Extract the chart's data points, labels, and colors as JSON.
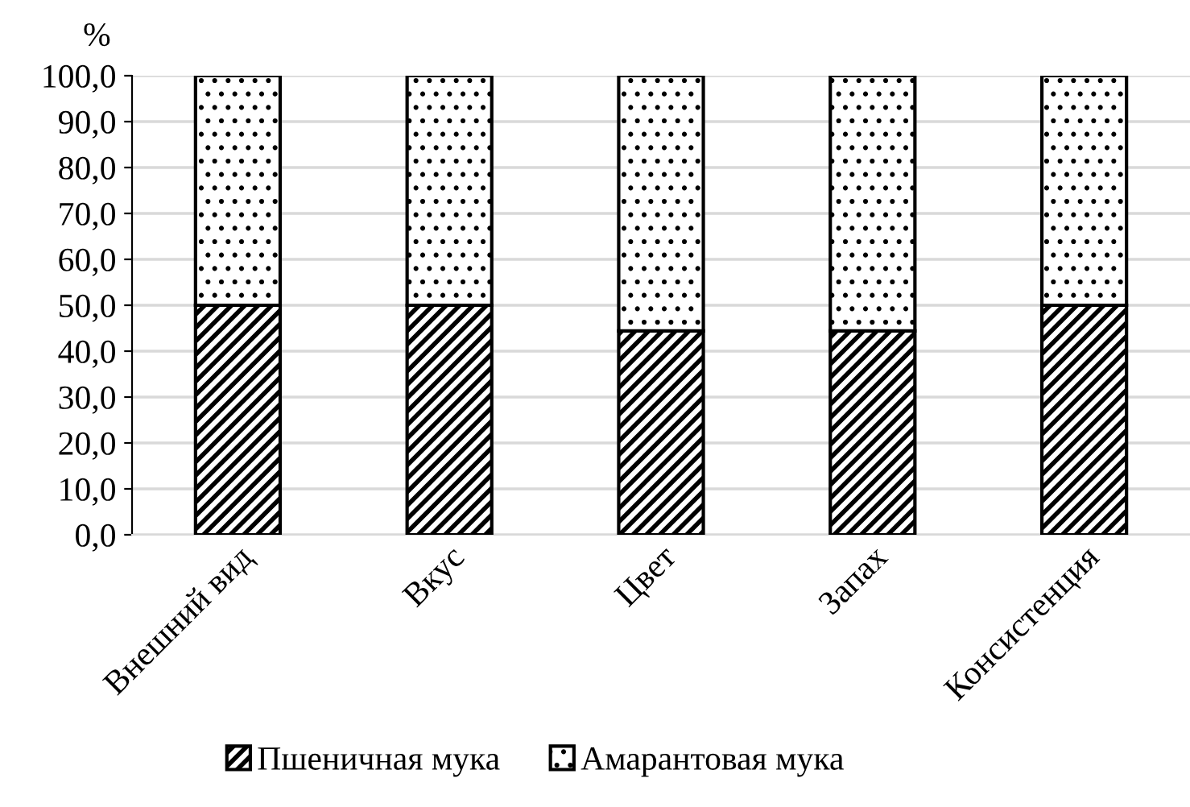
{
  "chart_data": {
    "type": "bar",
    "stacked": true,
    "ylabel": "%",
    "categories": [
      "Внешний вид",
      "Вкус",
      "Цвет",
      "Запах",
      "Консистенция"
    ],
    "series": [
      {
        "name": "Пшеничная мука",
        "color": "#000000",
        "values": [
          50.0,
          50.0,
          44.4,
          44.4,
          50.0
        ]
      },
      {
        "name": "Амарантовая мука",
        "color": "#000000",
        "values": [
          50.0,
          50.0,
          55.6,
          55.6,
          50.0
        ]
      }
    ],
    "ylim": [
      0,
      100
    ],
    "yticks": [
      {
        "value": 0,
        "label": "0,0"
      },
      {
        "value": 10,
        "label": "10,0"
      },
      {
        "value": 20,
        "label": "20,0"
      },
      {
        "value": 30,
        "label": "30,0"
      },
      {
        "value": 40,
        "label": "40,0"
      },
      {
        "value": 50,
        "label": "50,0"
      },
      {
        "value": 60,
        "label": "60,0"
      },
      {
        "value": 70,
        "label": "70,0"
      },
      {
        "value": 80,
        "label": "80,0"
      },
      {
        "value": 90,
        "label": "90,0"
      },
      {
        "value": 100,
        "label": "100,0"
      }
    ],
    "grid": "y",
    "legend": "bottom"
  }
}
